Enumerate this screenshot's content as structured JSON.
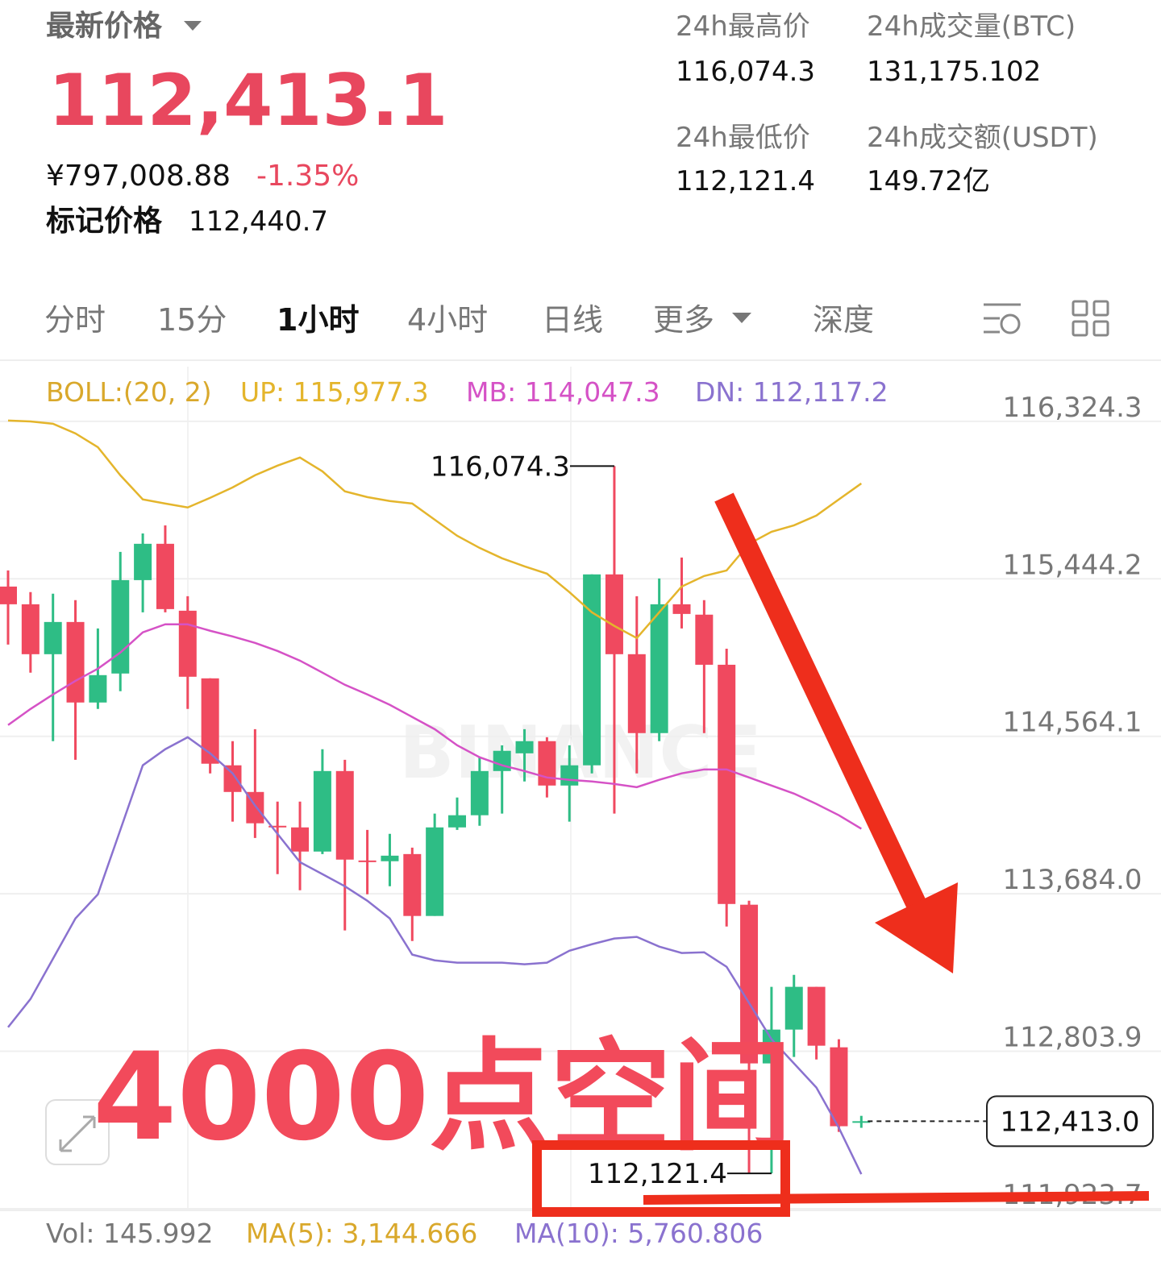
{
  "header": {
    "price_title": "最新价格",
    "last_price": "112,413.1",
    "cny_price": "¥797,008.88",
    "change": "-1.35%",
    "mark_label": "标记价格",
    "mark_price": "112,440.7",
    "stats": [
      {
        "label": "24h最高价",
        "value": "116,074.3"
      },
      {
        "label": "24h成交量(BTC)",
        "value": "131,175.102"
      },
      {
        "label": "24h最低价",
        "value": "112,121.4"
      },
      {
        "label": "24h成交额(USDT)",
        "value": "149.72亿"
      }
    ]
  },
  "tabs": [
    "分时",
    "15分",
    "1小时",
    "4小时",
    "日线",
    "更多",
    "深度"
  ],
  "active_tab": "1小时",
  "chart_data": {
    "type": "candlestick",
    "indicator": "BOLL:(20, 2)",
    "watermark": "BINANCE",
    "up_color": "#2ebd85",
    "down_color": "#f0495f",
    "open": [
      115401,
      115302,
      115023,
      115203,
      114753,
      114915,
      115437,
      115640,
      115266,
      114888,
      114402,
      114253,
      114064,
      114055,
      113920,
      114370,
      113870,
      113866,
      113906,
      113560,
      114055,
      114123,
      114370,
      114469,
      114537,
      114289,
      114402,
      115469,
      115023,
      114582,
      115302,
      115244,
      114964,
      113623,
      112736,
      112925,
      113164,
      112826,
      112405
    ],
    "high": [
      115491,
      115370,
      115361,
      115325,
      115167,
      115595,
      115698,
      115743,
      115347,
      114888,
      114537,
      114604,
      114199,
      114199,
      114492,
      114433,
      114041,
      114019,
      113942,
      114132,
      114222,
      114447,
      114514,
      114604,
      114559,
      114514,
      115469,
      116074.3,
      115347,
      115446,
      115563,
      115325,
      115054,
      113645,
      113164,
      113231,
      113164,
      112871,
      112443
    ],
    "low": [
      115077,
      114920,
      114537,
      114433,
      114717,
      114816,
      115257,
      115257,
      114717,
      114357,
      114087,
      113996,
      113794,
      113704,
      113906,
      113479,
      113681,
      113726,
      113420,
      113560,
      114041,
      114064,
      114132,
      114312,
      114222,
      114087,
      114357,
      114132,
      114357,
      114537,
      115167,
      114582,
      113501,
      112121.4,
      112121.4,
      112772,
      112758,
      112353,
      112376
    ],
    "close": [
      115302,
      115023,
      115203,
      114753,
      114906,
      115437,
      115640,
      115275,
      114897,
      114411,
      114253,
      114078,
      114055,
      113920,
      114370,
      113875,
      113861,
      113897,
      113560,
      114055,
      114123,
      114370,
      114483,
      114537,
      114289,
      114402,
      115469,
      115023,
      114582,
      115302,
      115248,
      114964,
      113627,
      112736,
      112925,
      113164,
      112835,
      112385,
      112413.0
    ],
    "series": [
      {
        "name": "UP: 115,977.3",
        "color": "#e4b52c",
        "values": [
          116329,
          116324,
          116311,
          116257,
          116180,
          116023,
          115888,
          115865,
          115843,
          115897,
          115955,
          116023,
          116077,
          116122,
          116045,
          115933,
          115901,
          115879,
          115865,
          115775,
          115685,
          115617,
          115559,
          115514,
          115473,
          115370,
          115257,
          115181,
          115113,
          115257,
          115401,
          115460,
          115491,
          115640,
          115707,
          115743,
          115798,
          115888,
          115977.3
        ]
      },
      {
        "name": "MB: 114,047.3",
        "color": "#d552c6",
        "values": [
          114627,
          114717,
          114798,
          114874,
          114942,
          115032,
          115145,
          115190,
          115190,
          115154,
          115122,
          115086,
          115041,
          114987,
          114920,
          114852,
          114798,
          114740,
          114672,
          114604,
          114514,
          114447,
          114402,
          114370,
          114334,
          114321,
          114312,
          114298,
          114280,
          114321,
          114357,
          114379,
          114379,
          114334,
          114289,
          114244,
          114186,
          114123,
          114047.3
        ]
      },
      {
        "name": "DN: 112,117.2",
        "color": "#8a72cf",
        "values": [
          112938,
          113096,
          113321,
          113546,
          113681,
          114041,
          114402,
          114492,
          114559,
          114469,
          114357,
          114177,
          114019,
          113861,
          113794,
          113726,
          113645,
          113546,
          113344,
          113312,
          113299,
          113299,
          113299,
          113290,
          113299,
          113366,
          113402,
          113434,
          113443,
          113389,
          113353,
          113357,
          113276,
          113074,
          112871,
          112736,
          112601,
          112376,
          112117.2
        ]
      }
    ],
    "ylim": [
      111923.7,
      116630
    ],
    "yticks": [
      {
        "value": 116324.3,
        "label": "116,324.3"
      },
      {
        "value": 115444.2,
        "label": "115,444.2"
      },
      {
        "value": 114564.1,
        "label": "114,564.1"
      },
      {
        "value": 113684.0,
        "label": "113,684.0"
      },
      {
        "value": 112803.9,
        "label": "112,803.9"
      },
      {
        "value": 111923.7,
        "label": "111,923.7"
      }
    ],
    "grid": true,
    "max_label": "116,074.3",
    "min_label": "112,121.4",
    "last_price_label": "112,413.0",
    "overlay_text": "4000点空间"
  },
  "footer": {
    "vol": "Vol: 145.992",
    "ma5": "MA(5): 3,144.666",
    "ma10": "MA(10): 5,760.806"
  }
}
